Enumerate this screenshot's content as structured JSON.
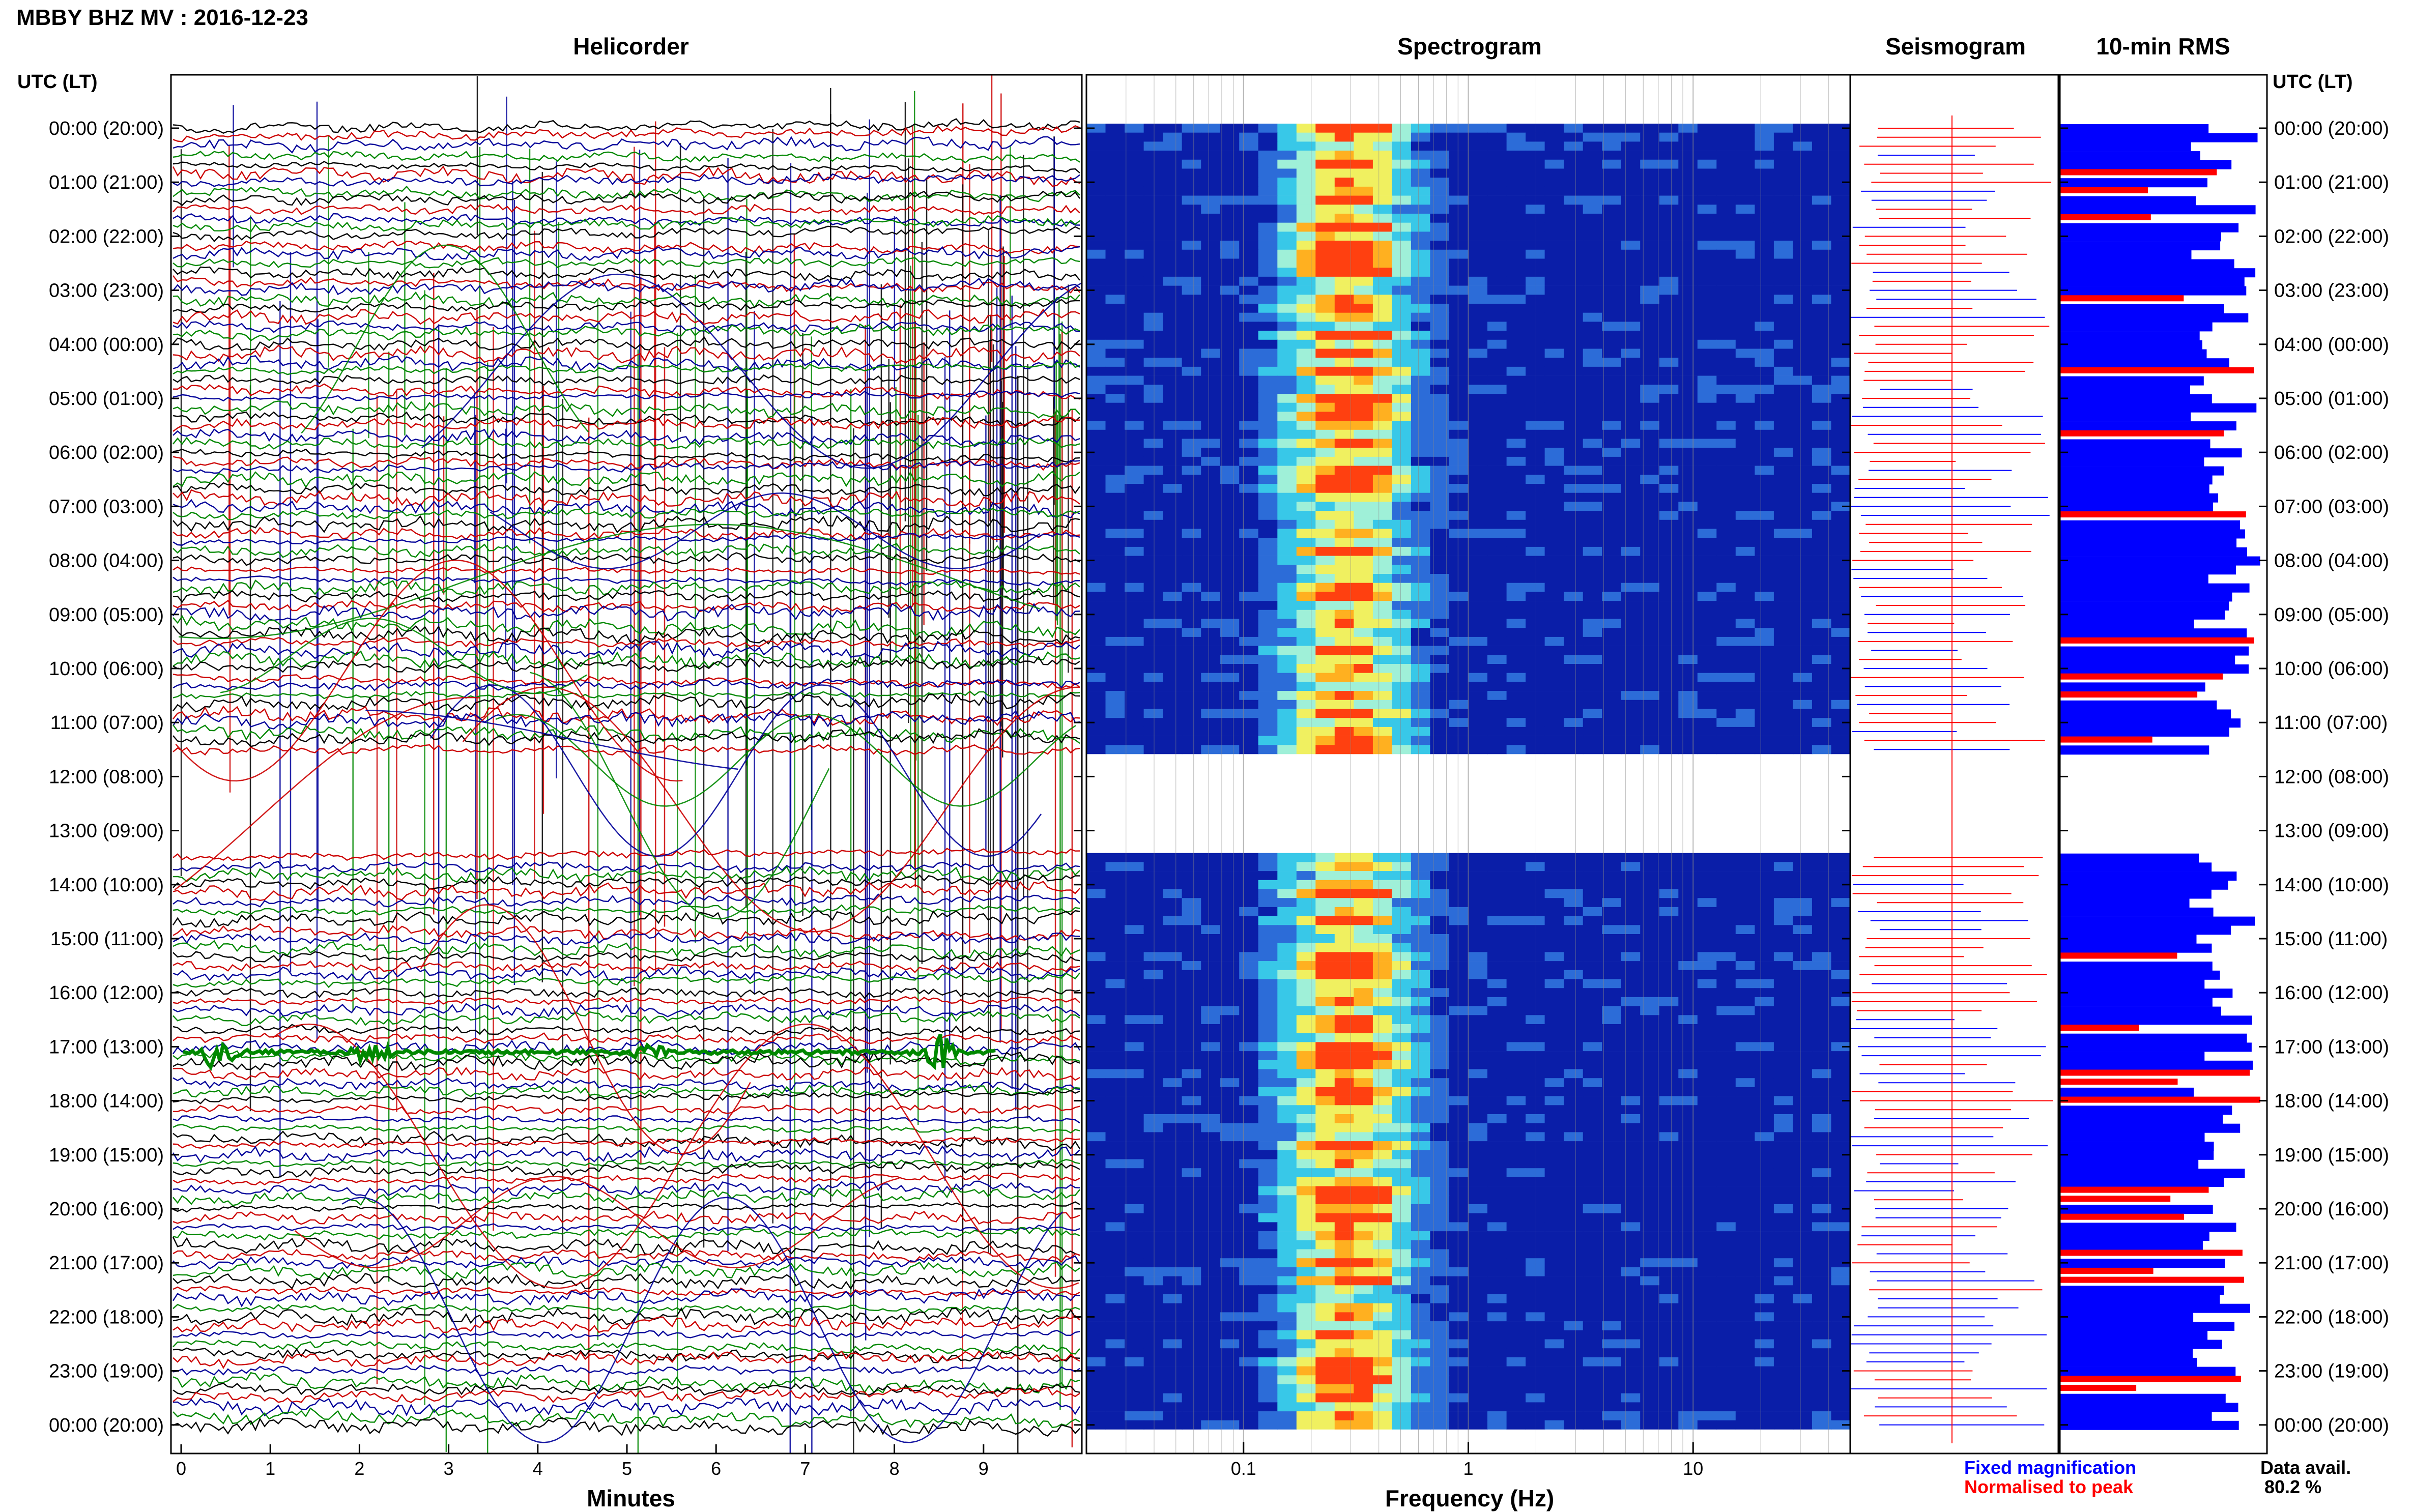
{
  "title": "MBBY BHZ MV : 2016-12-23",
  "panels": {
    "helicorder": "Helicorder",
    "spectrogram": "Spectrogram",
    "seismogram": "Seismogram",
    "rms": "10-min RMS"
  },
  "time_axis_label": "UTC (LT)",
  "x_axes": {
    "helicorder_label": "Minutes",
    "spectrogram_label": "Frequency (Hz)"
  },
  "legend": {
    "fixed": "Fixed magnification",
    "normalised": "Normalised to peak",
    "fixed_color": "#0000ff",
    "normalised_color": "#ff0000",
    "data_avail_label": "Data avail.",
    "data_avail_value": "80.2 %"
  },
  "colors": {
    "trace_colors": [
      "#000000",
      "#cc0000",
      "#000099",
      "#008800"
    ],
    "rms_fixed": "#0000ff",
    "rms_normalised": "#ff0000"
  },
  "chart_data": [
    {
      "type": "line",
      "name": "Helicorder",
      "x_range": [
        0,
        10
      ],
      "x_ticks": [
        "0",
        "1",
        "2",
        "3",
        "4",
        "5",
        "6",
        "7",
        "8",
        "9"
      ],
      "xlabel": "Minutes",
      "y_ticks": [
        "00:00 (20:00)",
        "01:00 (21:00)",
        "02:00 (22:00)",
        "03:00 (23:00)",
        "04:00 (00:00)",
        "05:00 (01:00)",
        "06:00 (02:00)",
        "07:00 (03:00)",
        "08:00 (04:00)",
        "09:00 (05:00)",
        "10:00 (06:00)",
        "11:00 (07:00)",
        "12:00 (08:00)",
        "13:00 (09:00)",
        "14:00 (10:00)",
        "15:00 (11:00)",
        "16:00 (12:00)",
        "17:00 (13:00)",
        "18:00 (14:00)",
        "19:00 (15:00)",
        "20:00 (16:00)",
        "21:00 (17:00)",
        "22:00 (18:00)",
        "23:00 (19:00)",
        "00:00 (20:00)"
      ],
      "data_gap_utc": [
        11.5,
        13.5
      ]
    },
    {
      "type": "heatmap",
      "name": "Spectrogram",
      "x_scale": "log",
      "x_range": [
        0.02,
        50
      ],
      "x_ticks": [
        "0.1",
        "1",
        "10"
      ],
      "xlabel": "Frequency (Hz)",
      "data_gap_utc": [
        11.5,
        13.5
      ]
    },
    {
      "type": "line",
      "name": "Seismogram",
      "data_gap_utc": [
        11.5,
        13.5
      ]
    },
    {
      "type": "bar",
      "name": "10-min RMS",
      "series_legend": [
        "Fixed magnification",
        "Normalised to peak"
      ],
      "data_gap_utc": [
        11.5,
        13.5
      ]
    }
  ]
}
